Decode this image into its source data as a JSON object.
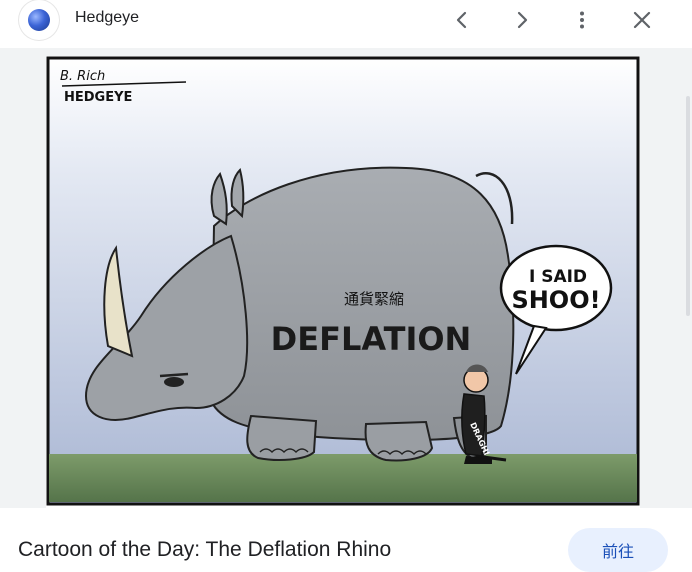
{
  "header": {
    "site_name": "Hedgeye",
    "icons": [
      "site-favicon",
      "chevron-left-icon",
      "chevron-right-icon",
      "more-vert-icon",
      "close-icon"
    ]
  },
  "image": {
    "signature": "B. Rich",
    "brand": "HEDGEYE",
    "chinese_label": "通貨緊縮",
    "rhino_label": "DEFLATION",
    "speech_line1": "I SAID",
    "speech_line2": "SHOO!",
    "man_label": "DRAGHI"
  },
  "caption": {
    "title": "Cartoon of the Day: The Deflation Rhino",
    "visit_label": "前往"
  },
  "colors": {
    "accent": "#1a4fb8",
    "visit_bg": "#e8f0fe",
    "sky": "#b7c2dc",
    "grass": "#6f8e5d",
    "rhino": "#9b9fa4"
  }
}
